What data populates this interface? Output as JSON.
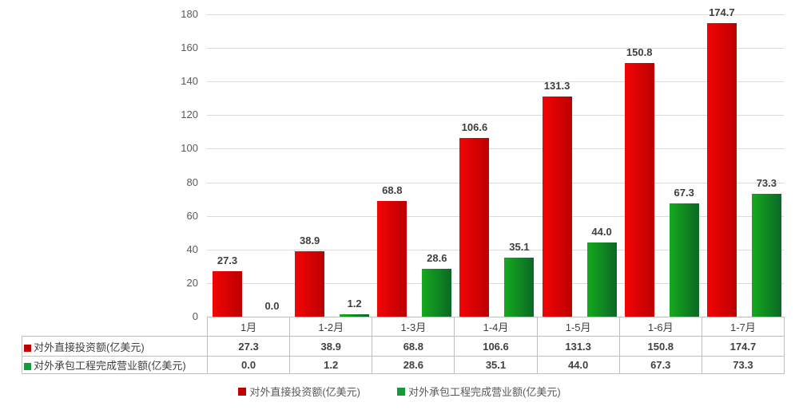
{
  "chart_data": {
    "type": "bar",
    "title": "",
    "categories": [
      "1月",
      "1-2月",
      "1-3月",
      "1-4月",
      "1-5月",
      "1-6月",
      "1-7月"
    ],
    "series": [
      {
        "name": "对外直接投资额(亿美元)",
        "values": [
          27.3,
          38.9,
          68.8,
          106.6,
          131.3,
          150.8,
          174.7
        ],
        "color_start": "#F20505",
        "color_end": "#BC0000",
        "marker_color": "#C00000"
      },
      {
        "name": "对外承包工程完成营业额(亿美元)",
        "values": [
          0.0,
          1.2,
          28.6,
          35.1,
          44.0,
          67.3,
          73.3
        ],
        "color_start": "#15AA1D",
        "color_end": "#0B6826",
        "marker_color": "#169939"
      }
    ],
    "xlabel": "",
    "ylabel": "",
    "ylim": [
      0,
      180
    ],
    "yticks": [
      0,
      20,
      40,
      60,
      80,
      100,
      120,
      140,
      160,
      180
    ],
    "grid": true,
    "gridline_color": "#DADADA",
    "value_labels": true,
    "value_label_decimals": 1,
    "legend_position": "bottom",
    "data_table_shown": true
  }
}
